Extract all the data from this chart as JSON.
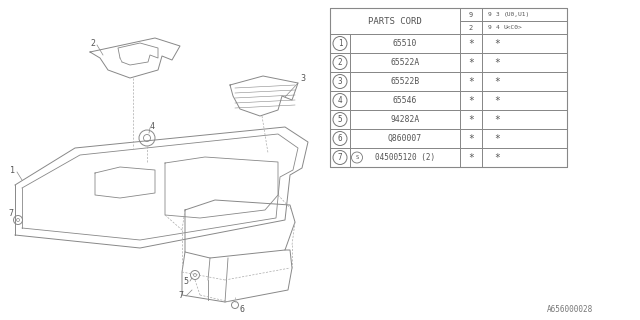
{
  "bg_color": "#ffffff",
  "diagram_color": "#aaaaaa",
  "table_line_color": "#888888",
  "text_color": "#555555",
  "parts_cord_header": "PARTS CORD",
  "header_col2_top": "9\n3",
  "header_col2_top2": "(U0,U1)",
  "header_col2_bot": "9\n4",
  "header_col2_bot2": "U<C0>",
  "header_col1_top": "9",
  "header_col1_bot": "2",
  "rows": [
    {
      "num": "1",
      "part": "65510",
      "c1": "*",
      "c2": "*"
    },
    {
      "num": "2",
      "part": "65522A",
      "c1": "*",
      "c2": "*"
    },
    {
      "num": "3",
      "part": "65522B",
      "c1": "*",
      "c2": "*"
    },
    {
      "num": "4",
      "part": "65546",
      "c1": "*",
      "c2": "*"
    },
    {
      "num": "5",
      "part": "94282A",
      "c1": "*",
      "c2": "*"
    },
    {
      "num": "6",
      "part": "Q860007",
      "c1": "*",
      "c2": "*"
    },
    {
      "num": "7",
      "part": "S045005120 (2)",
      "c1": "*",
      "c2": "*"
    }
  ],
  "footer": "A656000028"
}
